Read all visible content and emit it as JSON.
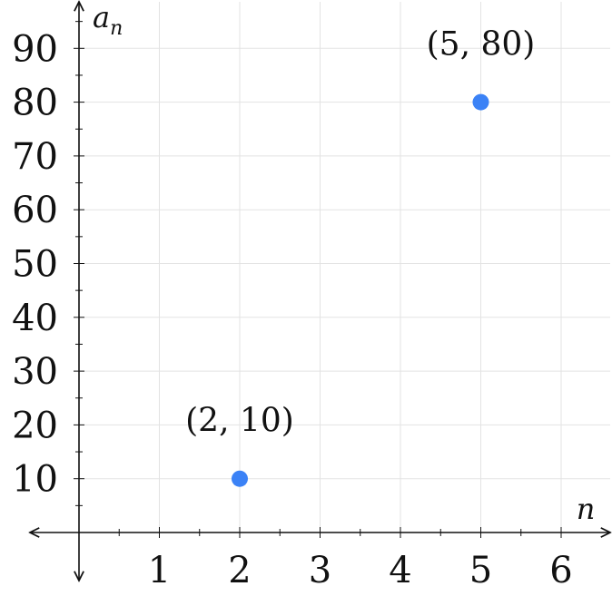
{
  "chart_data": {
    "type": "scatter",
    "xlabel": "n",
    "ylabel": {
      "base": "a",
      "subscript": "n"
    },
    "xlim": [
      -0.6,
      6.6
    ],
    "ylim": [
      -10,
      98
    ],
    "xticks": [
      1,
      2,
      3,
      4,
      5,
      6
    ],
    "yticks": [
      10,
      20,
      30,
      40,
      50,
      60,
      70,
      80,
      90
    ],
    "grid": true,
    "point_color": "#3b82f6",
    "points": [
      {
        "x": 2,
        "y": 10,
        "label": "(2, 10)"
      },
      {
        "x": 5,
        "y": 80,
        "label": "(5, 80)"
      }
    ]
  }
}
